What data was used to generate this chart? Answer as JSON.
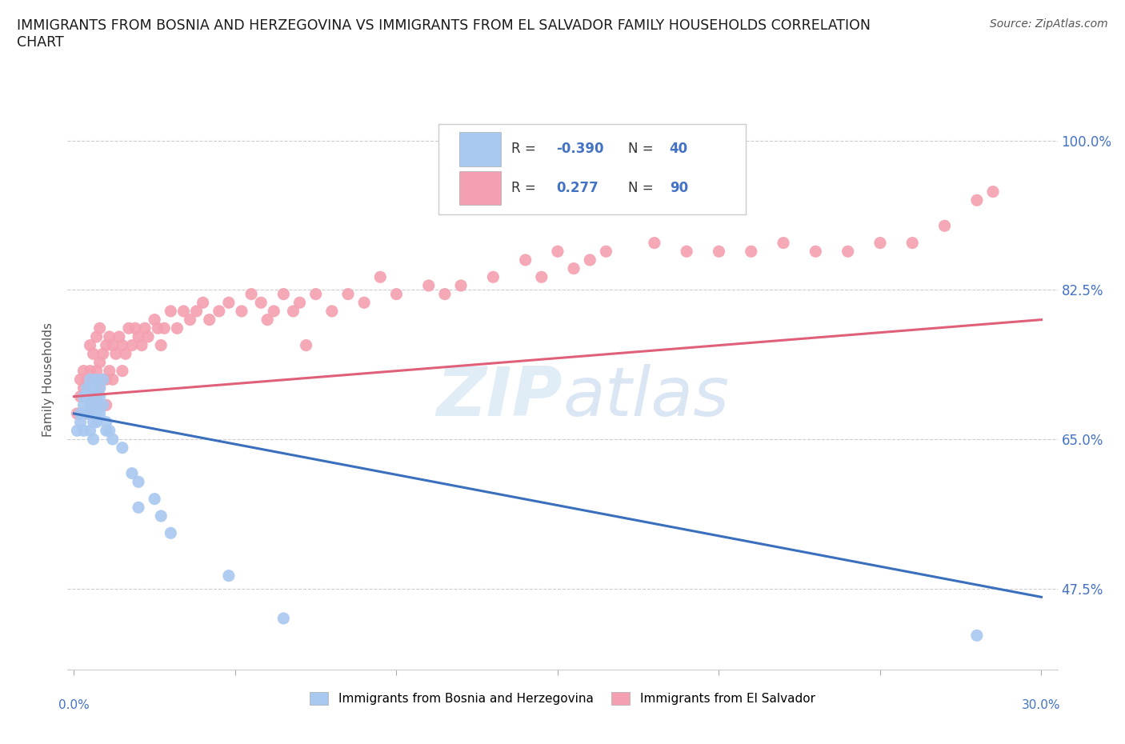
{
  "title": "IMMIGRANTS FROM BOSNIA AND HERZEGOVINA VS IMMIGRANTS FROM EL SALVADOR FAMILY HOUSEHOLDS CORRELATION\nCHART",
  "source": "Source: ZipAtlas.com",
  "ylabel": "Family Households",
  "ytick_values": [
    0.475,
    0.65,
    0.825,
    1.0
  ],
  "ytick_labels": [
    "47.5%",
    "65.0%",
    "82.5%",
    "100.0%"
  ],
  "xlim": [
    -0.002,
    0.305
  ],
  "ylim": [
    0.38,
    1.06
  ],
  "watermark": "ZIPatlas",
  "color_bosnia": "#a8c8f0",
  "color_elsalvador": "#f4a0b0",
  "trendline_color_bosnia": "#3a6fbd",
  "trendline_color_elsalvador": "#e0607a",
  "bosnia_scatter_x": [
    0.001,
    0.002,
    0.002,
    0.003,
    0.003,
    0.003,
    0.004,
    0.004,
    0.004,
    0.005,
    0.005,
    0.005,
    0.005,
    0.006,
    0.006,
    0.006,
    0.006,
    0.007,
    0.007,
    0.007,
    0.007,
    0.008,
    0.008,
    0.008,
    0.009,
    0.009,
    0.01,
    0.01,
    0.011,
    0.012,
    0.015,
    0.018,
    0.02,
    0.025,
    0.02,
    0.027,
    0.03,
    0.048,
    0.065,
    0.28
  ],
  "bosnia_scatter_y": [
    0.66,
    0.68,
    0.67,
    0.69,
    0.7,
    0.66,
    0.71,
    0.68,
    0.7,
    0.72,
    0.69,
    0.66,
    0.68,
    0.7,
    0.67,
    0.71,
    0.65,
    0.69,
    0.72,
    0.68,
    0.67,
    0.71,
    0.68,
    0.7,
    0.72,
    0.69,
    0.66,
    0.67,
    0.66,
    0.65,
    0.64,
    0.61,
    0.6,
    0.58,
    0.57,
    0.56,
    0.54,
    0.49,
    0.44,
    0.42
  ],
  "elsalvador_scatter_x": [
    0.001,
    0.002,
    0.002,
    0.003,
    0.003,
    0.004,
    0.004,
    0.005,
    0.005,
    0.005,
    0.006,
    0.006,
    0.006,
    0.007,
    0.007,
    0.007,
    0.008,
    0.008,
    0.008,
    0.009,
    0.009,
    0.01,
    0.01,
    0.01,
    0.011,
    0.011,
    0.012,
    0.012,
    0.013,
    0.014,
    0.015,
    0.015,
    0.016,
    0.017,
    0.018,
    0.019,
    0.02,
    0.021,
    0.022,
    0.023,
    0.025,
    0.026,
    0.027,
    0.028,
    0.03,
    0.032,
    0.034,
    0.036,
    0.038,
    0.04,
    0.042,
    0.045,
    0.048,
    0.052,
    0.055,
    0.058,
    0.06,
    0.065,
    0.068,
    0.07,
    0.075,
    0.08,
    0.085,
    0.09,
    0.095,
    0.1,
    0.11,
    0.115,
    0.12,
    0.13,
    0.14,
    0.145,
    0.15,
    0.155,
    0.16,
    0.165,
    0.18,
    0.19,
    0.2,
    0.21,
    0.22,
    0.23,
    0.24,
    0.25,
    0.26,
    0.27,
    0.28,
    0.285,
    0.062,
    0.072
  ],
  "elsalvador_scatter_y": [
    0.68,
    0.7,
    0.72,
    0.71,
    0.73,
    0.68,
    0.72,
    0.7,
    0.73,
    0.76,
    0.69,
    0.72,
    0.75,
    0.7,
    0.73,
    0.77,
    0.71,
    0.74,
    0.78,
    0.72,
    0.75,
    0.69,
    0.72,
    0.76,
    0.73,
    0.77,
    0.72,
    0.76,
    0.75,
    0.77,
    0.73,
    0.76,
    0.75,
    0.78,
    0.76,
    0.78,
    0.77,
    0.76,
    0.78,
    0.77,
    0.79,
    0.78,
    0.76,
    0.78,
    0.8,
    0.78,
    0.8,
    0.79,
    0.8,
    0.81,
    0.79,
    0.8,
    0.81,
    0.8,
    0.82,
    0.81,
    0.79,
    0.82,
    0.8,
    0.81,
    0.82,
    0.8,
    0.82,
    0.81,
    0.84,
    0.82,
    0.83,
    0.82,
    0.83,
    0.84,
    0.86,
    0.84,
    0.87,
    0.85,
    0.86,
    0.87,
    0.88,
    0.87,
    0.87,
    0.87,
    0.88,
    0.87,
    0.87,
    0.88,
    0.88,
    0.9,
    0.93,
    0.94,
    0.8,
    0.76
  ],
  "bos_trend_x0": 0.0,
  "bos_trend_y0": 0.68,
  "bos_trend_x1": 0.3,
  "bos_trend_y1": 0.465,
  "elsal_trend_x0": 0.0,
  "elsal_trend_y0": 0.7,
  "elsal_trend_x1": 0.3,
  "elsal_trend_y1": 0.79
}
